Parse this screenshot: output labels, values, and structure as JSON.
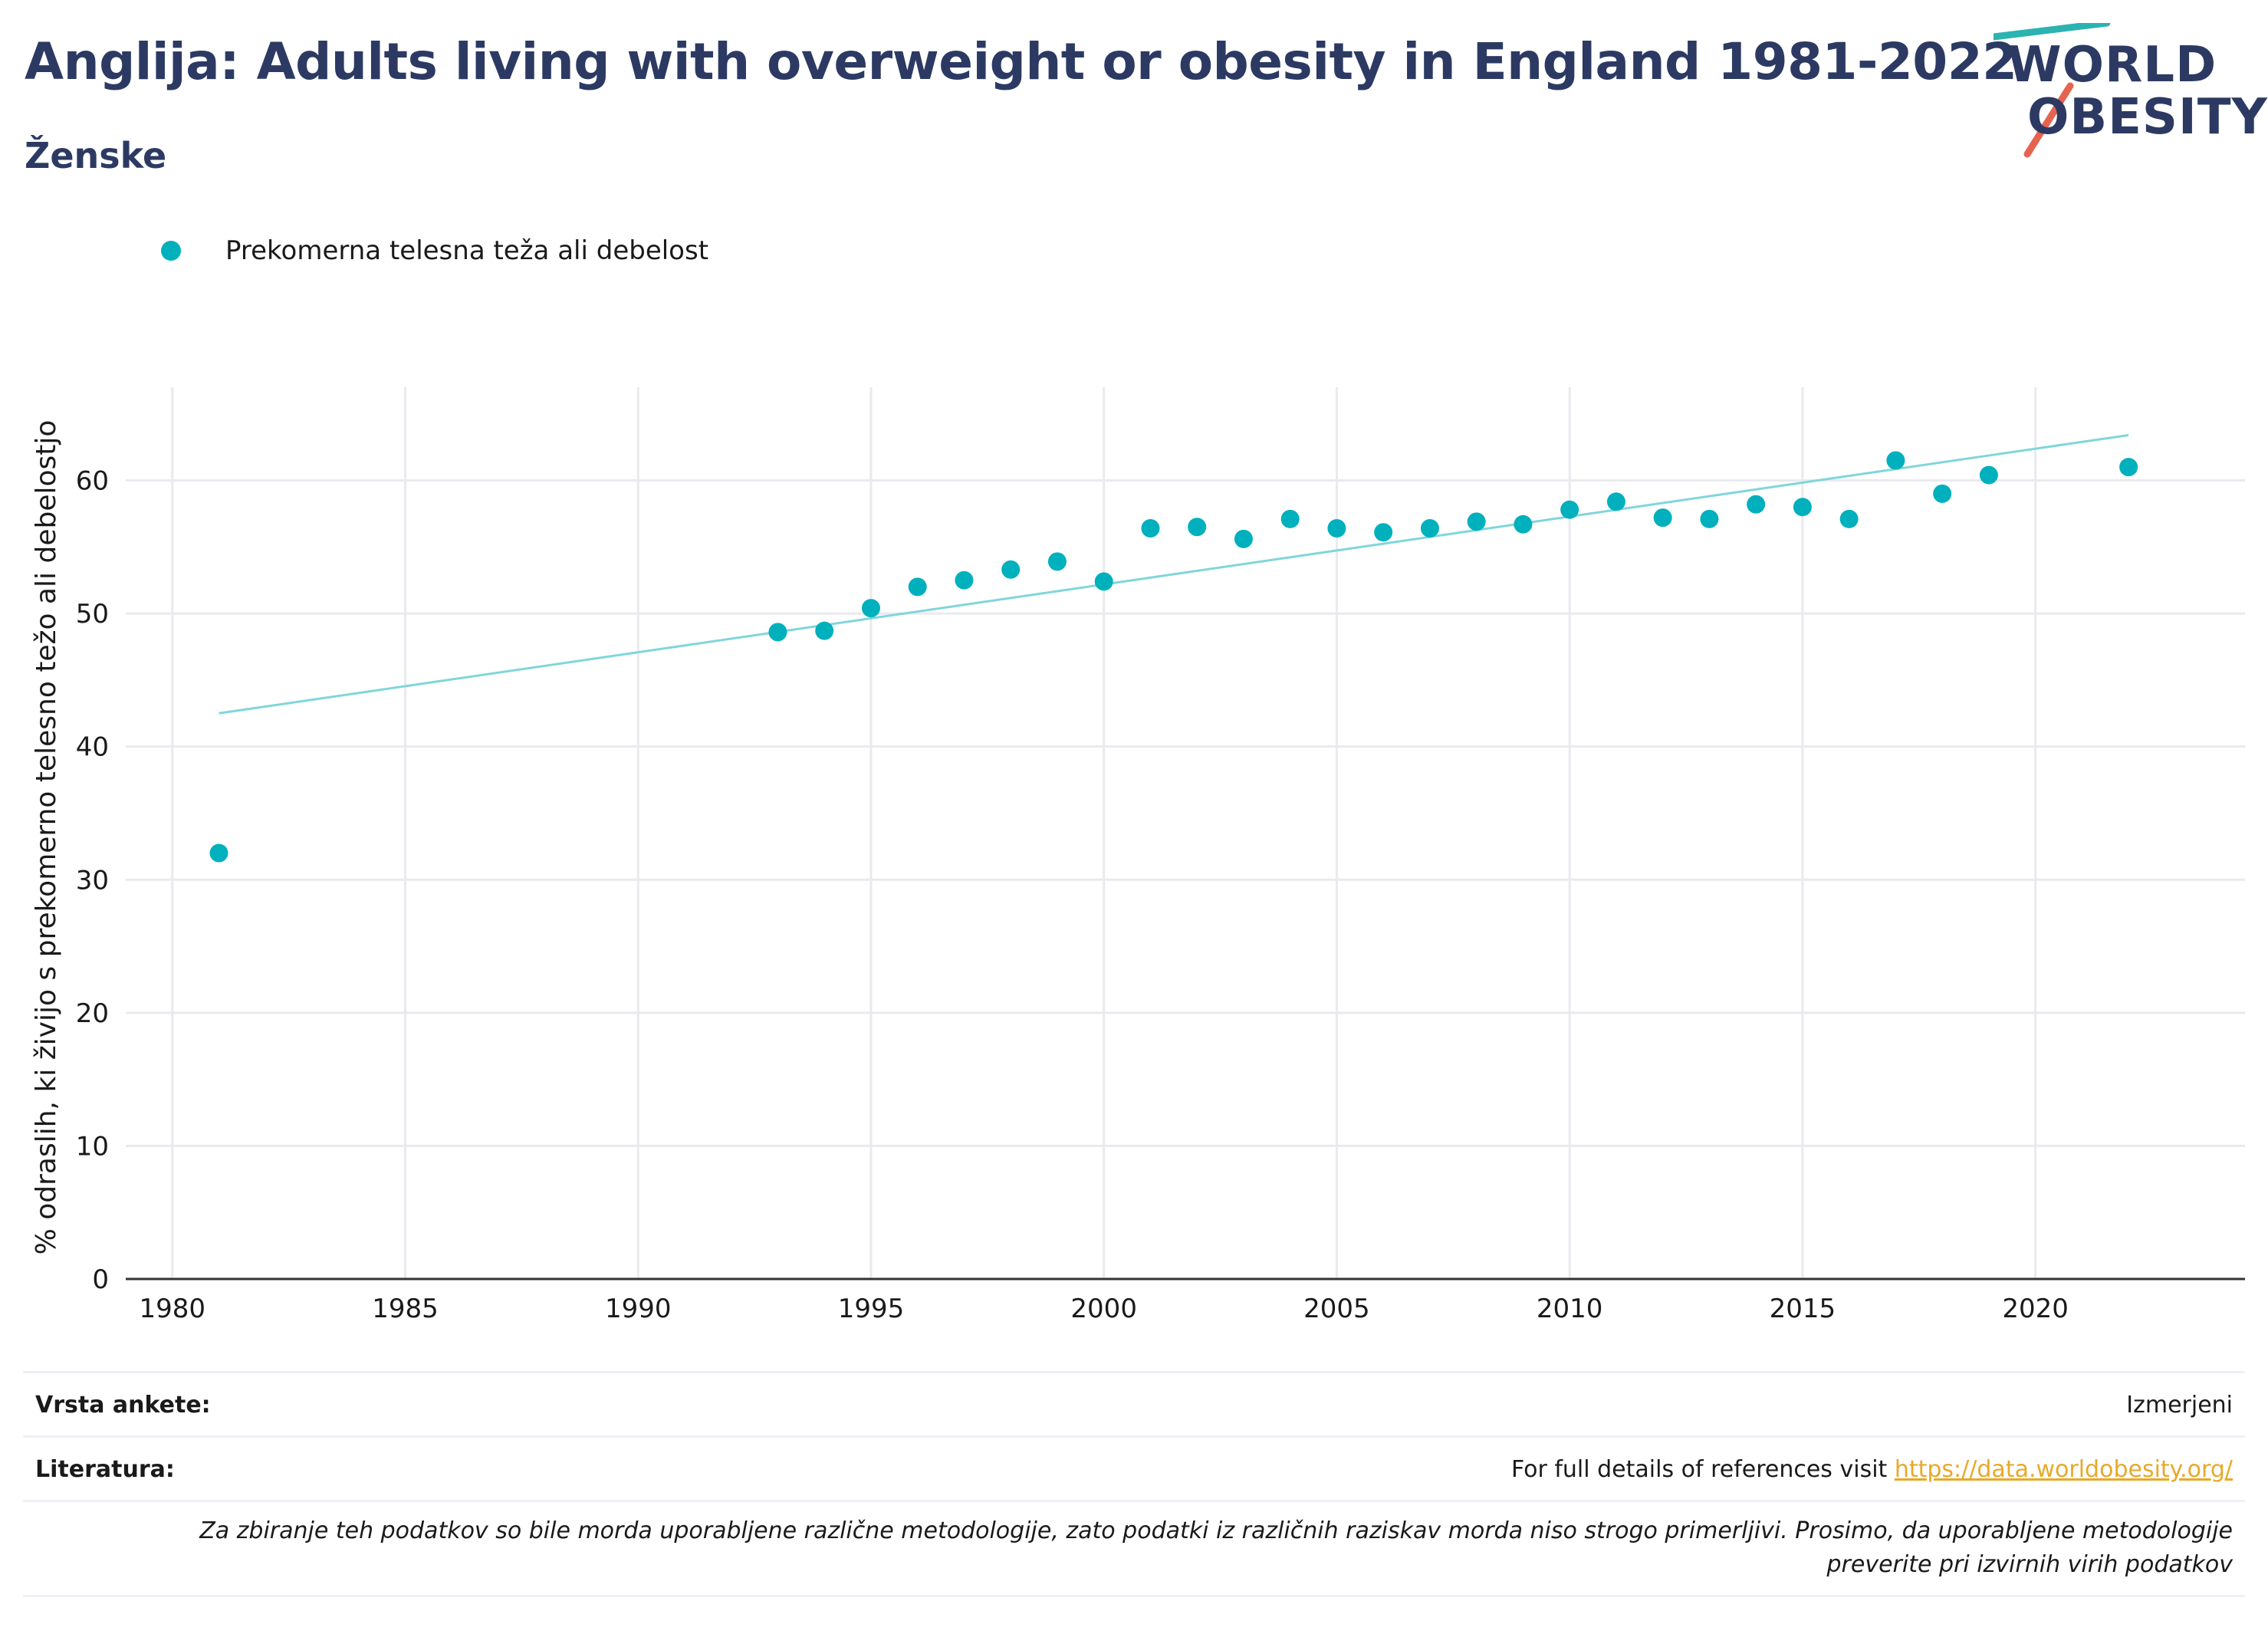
{
  "header": {
    "title": "Anglija: Adults living with overweight or obesity in England 1981-2022",
    "subtitle": "Ženske"
  },
  "logo": {
    "line1": "WORLD",
    "line2": "OBESITY",
    "accent_teal": "#2bb3b1",
    "accent_red": "#e5644f"
  },
  "legend": {
    "label": "Prekomerna telesna teža ali debelost",
    "color": "#00b0bd"
  },
  "chart_data": {
    "type": "scatter",
    "title": "Anglija: Adults living with overweight or obesity in England 1981-2022",
    "subtitle": "Ženske",
    "xlabel": "",
    "ylabel": "% odraslih, ki živijo s prekomerno telesno težo ali debelostjo",
    "xlim": [
      1979,
      2024.5
    ],
    "ylim": [
      0,
      67
    ],
    "xticks": [
      1980,
      1985,
      1990,
      1995,
      2000,
      2005,
      2010,
      2015,
      2020
    ],
    "yticks": [
      0,
      10,
      20,
      30,
      40,
      50,
      60
    ],
    "grid": true,
    "legend_position": "top-left",
    "series": [
      {
        "name": "Prekomerna telesna teža ali debelost",
        "color": "#00b0bd",
        "x": [
          1981,
          1993,
          1994,
          1995,
          1996,
          1997,
          1998,
          1999,
          2000,
          2001,
          2002,
          2003,
          2004,
          2005,
          2006,
          2007,
          2008,
          2009,
          2010,
          2011,
          2012,
          2013,
          2014,
          2015,
          2016,
          2017,
          2018,
          2019,
          2022
        ],
        "y": [
          32.0,
          48.6,
          48.7,
          50.4,
          52.0,
          52.5,
          53.3,
          53.9,
          52.4,
          56.4,
          56.5,
          55.6,
          57.1,
          56.4,
          56.1,
          56.4,
          56.9,
          56.7,
          57.8,
          58.4,
          57.2,
          57.1,
          58.2,
          58.0,
          57.1,
          61.5,
          59.0,
          60.4,
          61.0
        ]
      }
    ],
    "trendline": {
      "color": "#7fd6db",
      "x": [
        1981,
        2022
      ],
      "y": [
        42.5,
        63.4
      ]
    }
  },
  "footer": {
    "survey_label": "Vrsta ankete:",
    "survey_value": "Izmerjeni",
    "refs_label": "Literatura:",
    "refs_text": "For full details of references visit ",
    "refs_link": "https://data.worldobesity.org/",
    "note": "Za zbiranje teh podatkov so bile morda uporabljene različne metodologije, zato podatki iz različnih raziskav morda niso strogo primerljivi. Prosimo, da uporabljene metodologije preverite pri izvirnih virih podatkov"
  }
}
